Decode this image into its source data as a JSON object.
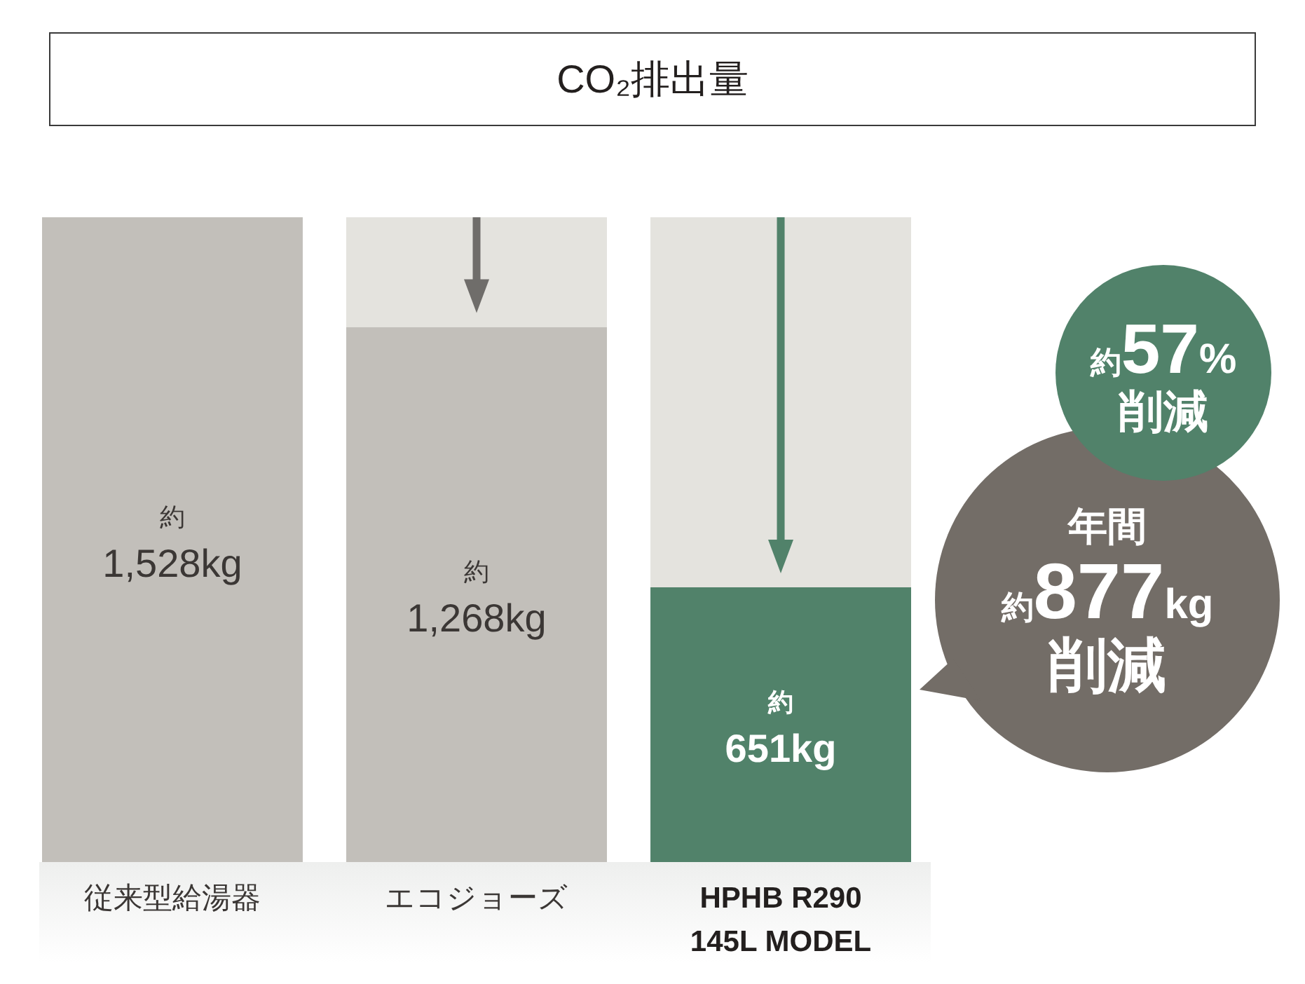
{
  "chart_data": {
    "type": "bar",
    "title": "CO₂排出量",
    "categories": [
      "従来型給湯器",
      "エコジョーズ",
      "HPHB R290 145L MODEL"
    ],
    "stacked": true,
    "series": [
      {
        "values": [
          1528,
          1268,
          651
        ],
        "colors": [
          "#c2bfba",
          "#c2bfba",
          "#51826a"
        ],
        "value_labels": [
          "約1,528kg",
          "約1,268kg",
          "約651kg"
        ]
      },
      {
        "values": [
          null,
          260,
          877
        ],
        "color": "#e4e3de"
      }
    ],
    "annotations": [
      "約57%削減",
      "年間約877kg削減"
    ]
  }
}
